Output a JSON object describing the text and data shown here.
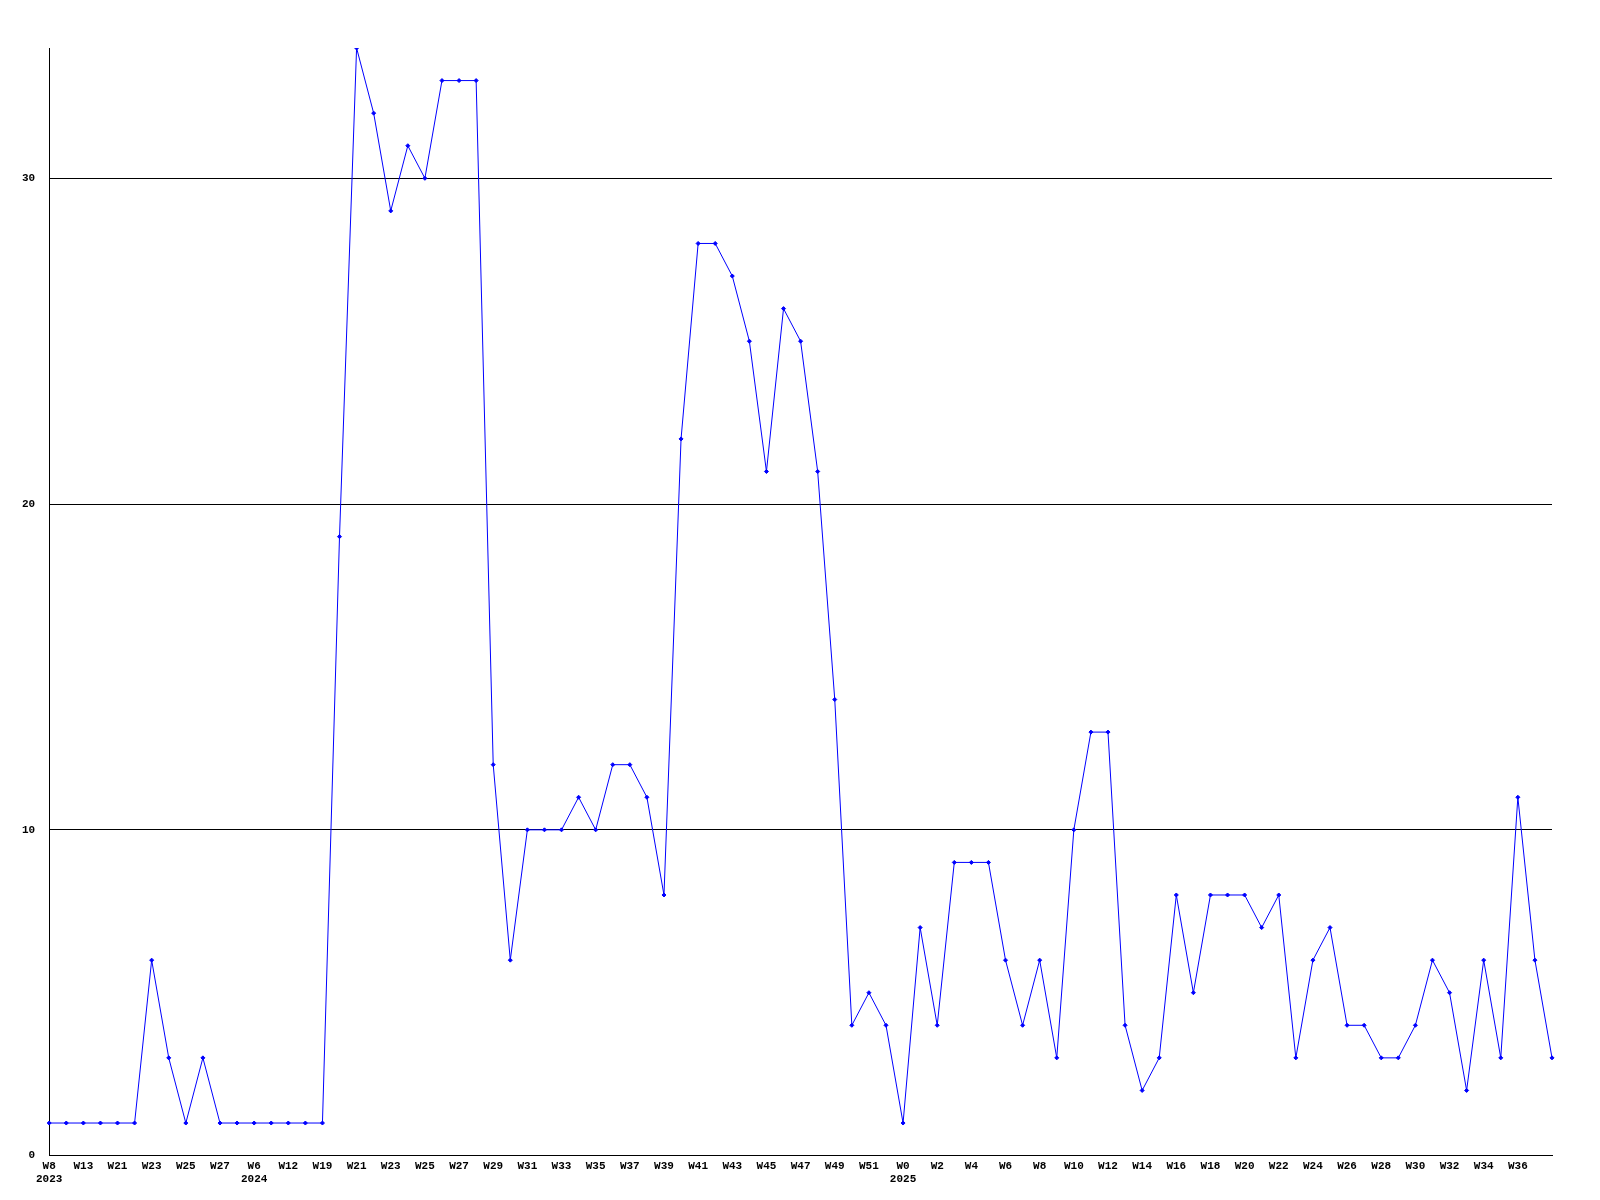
{
  "chart_data": {
    "type": "line",
    "categories": [
      "W8\n2023",
      null,
      "W13",
      null,
      "W21",
      null,
      "W23",
      null,
      "W25",
      null,
      "W27",
      null,
      "W6\n2024",
      null,
      "W12",
      null,
      "W19",
      null,
      "W21",
      null,
      "W23",
      null,
      "W25",
      null,
      "W27",
      null,
      "W29",
      null,
      "W31",
      null,
      "W33",
      null,
      "W35",
      null,
      "W37",
      null,
      "W39",
      null,
      "W41",
      null,
      "W43",
      null,
      "W45",
      null,
      "W47",
      null,
      "W49",
      null,
      "W51",
      null,
      "W0\n2025",
      null,
      "W2",
      null,
      "W4",
      null,
      "W6",
      null,
      "W8",
      null,
      "W10",
      null,
      "W12",
      null,
      "W14",
      null,
      "W16",
      null,
      "W18",
      null,
      "W20",
      null,
      "W22",
      null,
      "W24",
      null,
      "W26",
      null,
      "W28",
      null,
      "W30",
      null,
      "W32",
      null,
      "W34",
      null,
      "W36",
      null,
      null
    ],
    "series": [
      {
        "color": "#0000ff",
        "values": [
          1,
          1,
          1,
          1,
          1,
          1,
          6,
          3,
          1,
          3,
          1,
          1,
          1,
          1,
          1,
          1,
          1,
          19,
          34,
          32,
          29,
          31,
          30,
          33,
          33,
          33,
          12,
          6,
          10,
          10,
          10,
          11,
          10,
          12,
          12,
          11,
          8,
          22,
          28,
          28,
          27,
          25,
          21,
          26,
          25,
          21,
          14,
          4,
          5,
          4,
          1,
          7,
          4,
          9,
          9,
          9,
          6,
          4,
          6,
          3,
          10,
          13,
          13,
          4,
          2,
          3,
          8,
          5,
          8,
          8,
          8,
          7,
          8,
          3,
          6,
          7,
          4,
          4,
          3,
          3,
          4,
          6,
          5,
          2,
          6,
          3,
          11,
          6,
          3
        ]
      }
    ],
    "ylim": [
      0,
      34
    ],
    "yticks": [
      0,
      10,
      20,
      30
    ],
    "grid": "y",
    "legend": false,
    "marker": "diamond",
    "line_style": "solid"
  }
}
